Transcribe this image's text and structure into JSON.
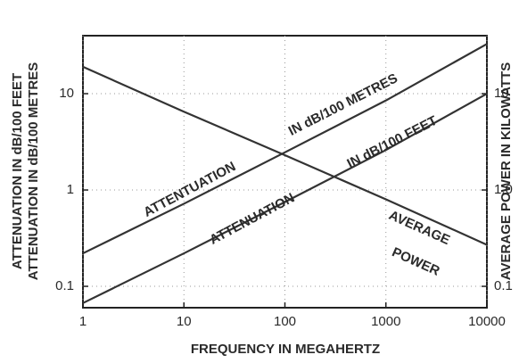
{
  "chart_data": {
    "type": "line",
    "x_label": "FREQUENCY IN MEGAHERTZ",
    "y_label": [
      "ATTENUATION IN dB/100 FEET",
      "ATTENUATION IN dB/100 METRES"
    ],
    "y2_label": "AVERAGE POWER IN KILOWATTS",
    "x": [
      1,
      10,
      100,
      1000,
      10000
    ],
    "series": [
      {
        "name": "ATTENUATION IN dB/100 METRES",
        "color": "#333333",
        "values": [
          0.22,
          0.72,
          2.46,
          8.5,
          32.8
        ]
      },
      {
        "name": "ATTENUATION IN dB/100 FEET",
        "color": "#333333",
        "values": [
          0.067,
          0.22,
          0.75,
          2.6,
          10
        ]
      },
      {
        "name": "AVERAGE POWER",
        "color": "#333333",
        "axis": "y2",
        "values": [
          19,
          6.5,
          2.3,
          0.8,
          0.27
        ]
      }
    ],
    "annotations": [
      "ATTENTUATION",
      "IN dB/100 METRES",
      "ATTENUATION",
      "IN dB/100 FEET",
      "AVERAGE",
      "POWER"
    ],
    "xscale": "log",
    "yscale": "log",
    "y2scale": "log",
    "xlim": [
      1,
      10000
    ],
    "xticks": [
      1,
      10,
      100,
      1000,
      10000
    ],
    "ylim": [
      0.06,
      40
    ],
    "yticks": [
      0.1,
      1,
      10
    ],
    "y2lim": [
      0.06,
      40
    ],
    "y2ticks": [
      0.1,
      {
        "value": 1,
        "label": "1.0"
      },
      10
    ],
    "grid": true
  }
}
